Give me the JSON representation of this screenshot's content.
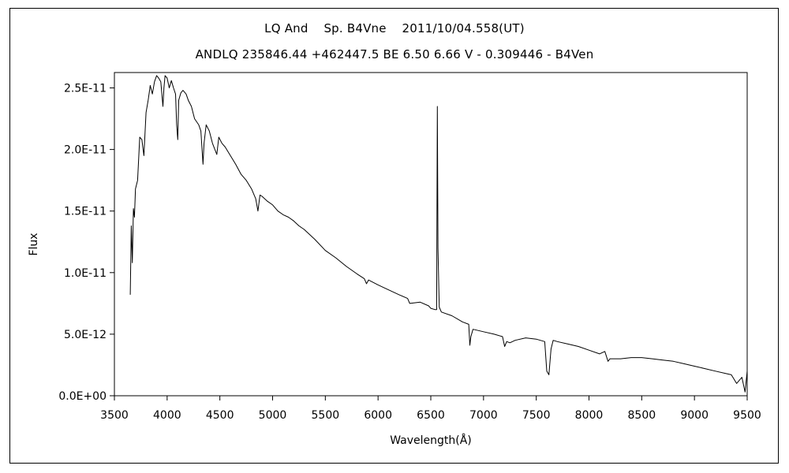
{
  "chart_data": {
    "type": "line",
    "title": "LQ And    Sp. B4Vne    2011/10/04.558(UT)",
    "subtitle": "ANDLQ 235846.44 +462447.5 BE 6.50 6.66 V - 0.309446 - B4Ven",
    "xlabel": "Wavelength(Å)",
    "ylabel": "Flux",
    "xlim": [
      3500,
      9500
    ],
    "ylim": [
      0,
      2.625e-11
    ],
    "xticks": [
      3500,
      4000,
      4500,
      5000,
      5500,
      6000,
      6500,
      7000,
      7500,
      8000,
      8500,
      9000,
      9500
    ],
    "xtick_labels": [
      "3500",
      "4000",
      "4500",
      "5000",
      "5500",
      "6000",
      "6500",
      "7000",
      "7500",
      "8000",
      "8500",
      "9000",
      "9500"
    ],
    "yticks": [
      0,
      5e-12,
      1e-11,
      1.5e-11,
      2e-11,
      2.5e-11
    ],
    "ytick_labels": [
      "0.0E+00",
      "5.0E-12",
      "1.0E-11",
      "1.5E-11",
      "2.0E-11",
      "2.5E-11"
    ],
    "grid": false,
    "legend": "none",
    "series": [
      {
        "color": "#000000",
        "x": [
          3650,
          3660,
          3670,
          3680,
          3690,
          3700,
          3720,
          3740,
          3760,
          3780,
          3800,
          3820,
          3840,
          3860,
          3880,
          3900,
          3920,
          3940,
          3960,
          3970,
          3980,
          4000,
          4020,
          4040,
          4060,
          4080,
          4090,
          4101,
          4110,
          4130,
          4150,
          4180,
          4200,
          4230,
          4260,
          4300,
          4320,
          4340,
          4350,
          4370,
          4400,
          4430,
          4471,
          4490,
          4520,
          4550,
          4600,
          4650,
          4700,
          4750,
          4800,
          4840,
          4861,
          4880,
          4900,
          4950,
          5000,
          5050,
          5100,
          5150,
          5200,
          5250,
          5300,
          5400,
          5500,
          5600,
          5700,
          5800,
          5870,
          5890,
          5910,
          6000,
          6100,
          6200,
          6280,
          6300,
          6400,
          6480,
          6500,
          6540,
          6555,
          6562,
          6568,
          6580,
          6600,
          6700,
          6800,
          6860,
          6870,
          6880,
          6900,
          7000,
          7100,
          7180,
          7200,
          7220,
          7250,
          7300,
          7400,
          7500,
          7580,
          7600,
          7620,
          7640,
          7660,
          7700,
          7800,
          7900,
          8000,
          8100,
          8150,
          8180,
          8200,
          8300,
          8400,
          8500,
          8600,
          8700,
          8800,
          8900,
          9000,
          9100,
          9200,
          9300,
          9350,
          9400,
          9450,
          9480,
          9500
        ],
        "y": [
          8.2e-12,
          1.38e-11,
          1.08e-11,
          1.52e-11,
          1.45e-11,
          1.68e-11,
          1.75e-11,
          2.1e-11,
          2.08e-11,
          1.95e-11,
          2.3e-11,
          2.4e-11,
          2.52e-11,
          2.45e-11,
          2.55e-11,
          2.6e-11,
          2.58e-11,
          2.55e-11,
          2.35e-11,
          2.5e-11,
          2.6e-11,
          2.58e-11,
          2.5e-11,
          2.56e-11,
          2.5e-11,
          2.45e-11,
          2.2e-11,
          2.08e-11,
          2.4e-11,
          2.46e-11,
          2.48e-11,
          2.45e-11,
          2.4e-11,
          2.35e-11,
          2.25e-11,
          2.2e-11,
          2.15e-11,
          1.88e-11,
          2.05e-11,
          2.2e-11,
          2.15e-11,
          2.05e-11,
          1.96e-11,
          2.1e-11,
          2.05e-11,
          2.02e-11,
          1.95e-11,
          1.88e-11,
          1.8e-11,
          1.75e-11,
          1.68e-11,
          1.6e-11,
          1.5e-11,
          1.63e-11,
          1.62e-11,
          1.58e-11,
          1.55e-11,
          1.5e-11,
          1.47e-11,
          1.45e-11,
          1.42e-11,
          1.38e-11,
          1.35e-11,
          1.27e-11,
          1.18e-11,
          1.12e-11,
          1.05e-11,
          9.9e-12,
          9.5e-12,
          9.1e-12,
          9.4e-12,
          9e-12,
          8.6e-12,
          8.2e-12,
          7.9e-12,
          7.5e-12,
          7.6e-12,
          7.3e-12,
          7.1e-12,
          7e-12,
          7e-12,
          2.35e-11,
          1.2e-11,
          7.2e-12,
          6.8e-12,
          6.5e-12,
          6e-12,
          5.8e-12,
          4.1e-12,
          4.8e-12,
          5.4e-12,
          5.2e-12,
          5e-12,
          4.8e-12,
          4e-12,
          4.4e-12,
          4.3e-12,
          4.5e-12,
          4.7e-12,
          4.6e-12,
          4.4e-12,
          2e-12,
          1.7e-12,
          3.8e-12,
          4.5e-12,
          4.4e-12,
          4.2e-12,
          4e-12,
          3.7e-12,
          3.4e-12,
          3.6e-12,
          2.8e-12,
          3e-12,
          3e-12,
          3.1e-12,
          3.1e-12,
          3e-12,
          2.9e-12,
          2.8e-12,
          2.6e-12,
          2.4e-12,
          2.2e-12,
          2e-12,
          1.8e-12,
          1.7e-12,
          1e-12,
          1.5e-12,
          3e-13,
          2e-12
        ]
      }
    ]
  }
}
